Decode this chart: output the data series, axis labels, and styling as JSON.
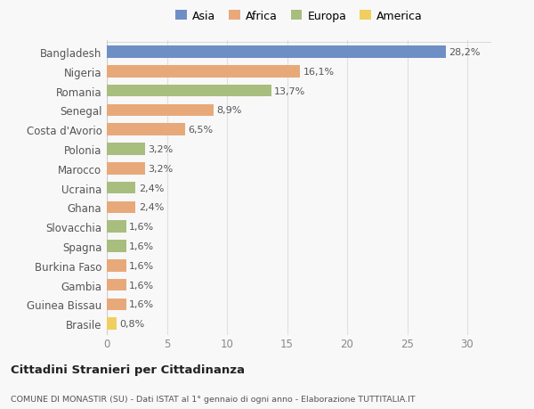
{
  "categories": [
    "Bangladesh",
    "Nigeria",
    "Romania",
    "Senegal",
    "Costa d'Avorio",
    "Polonia",
    "Marocco",
    "Ucraina",
    "Ghana",
    "Slovacchia",
    "Spagna",
    "Burkina Faso",
    "Gambia",
    "Guinea Bissau",
    "Brasile"
  ],
  "values": [
    28.2,
    16.1,
    13.7,
    8.9,
    6.5,
    3.2,
    3.2,
    2.4,
    2.4,
    1.6,
    1.6,
    1.6,
    1.6,
    1.6,
    0.8
  ],
  "labels": [
    "28,2%",
    "16,1%",
    "13,7%",
    "8,9%",
    "6,5%",
    "3,2%",
    "3,2%",
    "2,4%",
    "2,4%",
    "1,6%",
    "1,6%",
    "1,6%",
    "1,6%",
    "1,6%",
    "0,8%"
  ],
  "colors": [
    "#6e8fc5",
    "#e8a97a",
    "#a8be7e",
    "#e8a97a",
    "#e8a97a",
    "#a8be7e",
    "#e8a97a",
    "#a8be7e",
    "#e8a97a",
    "#a8be7e",
    "#a8be7e",
    "#e8a97a",
    "#e8a97a",
    "#e8a97a",
    "#f0cf60"
  ],
  "legend_labels": [
    "Asia",
    "Africa",
    "Europa",
    "America"
  ],
  "legend_colors": [
    "#6e8fc5",
    "#e8a97a",
    "#a8be7e",
    "#f0cf60"
  ],
  "title": "Cittadini Stranieri per Cittadinanza",
  "subtitle": "COMUNE DI MONASTIR (SU) - Dati ISTAT al 1° gennaio di ogni anno - Elaborazione TUTTITALIA.IT",
  "xlim": [
    0,
    32
  ],
  "xticks": [
    0,
    5,
    10,
    15,
    20,
    25,
    30
  ],
  "background_color": "#f8f8f8",
  "grid_color": "#e0e0e0",
  "bar_height": 0.62
}
